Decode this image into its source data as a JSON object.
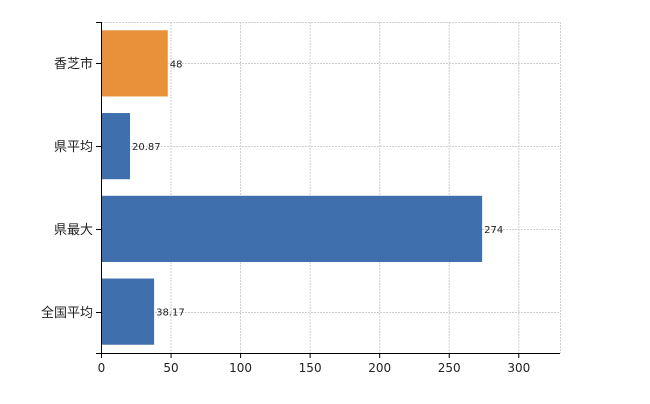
{
  "chart_data": {
    "type": "bar",
    "orientation": "horizontal",
    "categories": [
      "香芝市",
      "県平均",
      "県最大",
      "全国平均"
    ],
    "values": [
      48,
      20.87,
      274,
      38.17
    ],
    "data_labels": [
      "48",
      "20.87",
      "274",
      "38.17"
    ],
    "bar_colors": [
      "#e8913a",
      "#3f6fad",
      "#3f6fad",
      "#3f6fad"
    ],
    "x_ticks": [
      0,
      50,
      100,
      150,
      200,
      250,
      300
    ],
    "xlim": [
      0,
      330
    ],
    "grid": true,
    "legend": false
  }
}
